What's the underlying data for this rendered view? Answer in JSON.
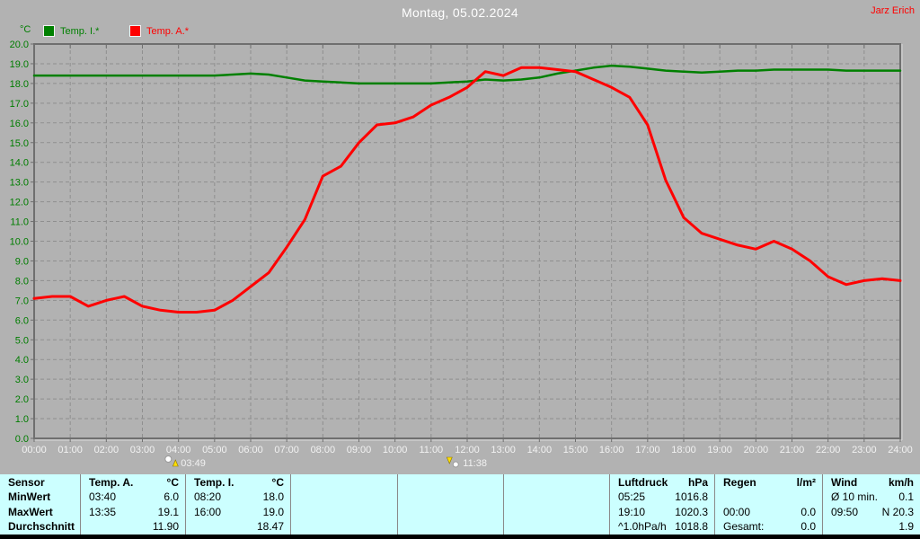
{
  "header": {
    "title": "Montag, 05.02.2024",
    "user": "Jarz Erich"
  },
  "chart_data": {
    "type": "line",
    "title": "Montag, 05.02.2024",
    "ylabel": "°C",
    "ylim": [
      0,
      20
    ],
    "ytick_step": 1,
    "xlim_hours": [
      0,
      24
    ],
    "xtick_labels": [
      "00:00",
      "01:00",
      "02:00",
      "03:00",
      "04:00",
      "05:00",
      "06:00",
      "07:00",
      "08:00",
      "09:00",
      "10:00",
      "11:00",
      "12:00",
      "13:00",
      "14:00",
      "15:00",
      "16:00",
      "17:00",
      "18:00",
      "19:00",
      "20:00",
      "21:00",
      "22:00",
      "23:00",
      "24:00"
    ],
    "grid": true,
    "legend_position": "top-left",
    "series": [
      {
        "name": "Temp. I.*",
        "color": "#008000",
        "x_hours": [
          0,
          0.5,
          1,
          1.5,
          2,
          2.5,
          3,
          3.5,
          4,
          4.5,
          5,
          5.5,
          6,
          6.5,
          7,
          7.5,
          8,
          8.5,
          9,
          9.5,
          10,
          10.5,
          11,
          11.5,
          12,
          12.5,
          13,
          13.5,
          14,
          14.5,
          15,
          15.5,
          16,
          16.5,
          17,
          17.5,
          18,
          18.5,
          19,
          19.5,
          20,
          20.5,
          21,
          21.5,
          22,
          22.5,
          23,
          23.5,
          24
        ],
        "values": [
          18.4,
          18.4,
          18.4,
          18.4,
          18.4,
          18.4,
          18.4,
          18.4,
          18.4,
          18.4,
          18.4,
          18.45,
          18.5,
          18.45,
          18.3,
          18.15,
          18.1,
          18.05,
          18.0,
          18.0,
          18.0,
          18.0,
          18.0,
          18.05,
          18.1,
          18.2,
          18.15,
          18.2,
          18.3,
          18.5,
          18.65,
          18.8,
          18.9,
          18.85,
          18.75,
          18.65,
          18.6,
          18.55,
          18.6,
          18.65,
          18.65,
          18.7,
          18.7,
          18.7,
          18.7,
          18.65,
          18.65,
          18.65,
          18.65
        ]
      },
      {
        "name": "Temp. A.*",
        "color": "#ff0000",
        "x_hours": [
          0,
          0.5,
          1,
          1.5,
          2,
          2.5,
          3,
          3.5,
          4,
          4.5,
          5,
          5.5,
          6,
          6.5,
          7,
          7.5,
          8,
          8.5,
          9,
          9.5,
          10,
          10.5,
          11,
          11.5,
          12,
          12.5,
          13,
          13.5,
          14,
          14.5,
          15,
          15.5,
          16,
          16.5,
          17,
          17.5,
          18,
          18.5,
          19,
          19.5,
          20,
          20.5,
          21,
          21.5,
          22,
          22.5,
          23,
          23.5,
          24
        ],
        "values": [
          7.1,
          7.2,
          7.2,
          6.7,
          7.0,
          7.2,
          6.7,
          6.5,
          6.4,
          6.4,
          6.5,
          7.0,
          7.7,
          8.4,
          9.7,
          11.1,
          13.3,
          13.8,
          15.0,
          15.9,
          16.0,
          16.3,
          16.9,
          17.3,
          17.8,
          18.6,
          18.4,
          18.8,
          18.8,
          18.7,
          18.6,
          18.2,
          17.8,
          17.3,
          15.9,
          13.1,
          11.2,
          10.4,
          10.1,
          9.8,
          9.6,
          10.0,
          9.6,
          9.0,
          8.2,
          7.8,
          8.0,
          8.1,
          8.0
        ]
      }
    ],
    "event_markers": [
      {
        "time": "03:49",
        "icon": "moonrise-icon"
      },
      {
        "time": "11:38",
        "icon": "moonset-icon"
      }
    ],
    "axis_label_colors": {
      "y": "#007d00",
      "x": "#f2f2f2"
    }
  },
  "summary_table": {
    "row_labels": [
      "Sensor",
      "MinWert",
      "MaxWert",
      "Durchschnitt"
    ],
    "groups": [
      {
        "header": "Temp. A.",
        "unit": "°C",
        "rows": [
          [
            "03:40",
            "6.0"
          ],
          [
            "13:35",
            "19.1"
          ],
          [
            "",
            "11.90"
          ]
        ]
      },
      {
        "header": "Temp. I.",
        "unit": "°C",
        "rows": [
          [
            "08:20",
            "18.0"
          ],
          [
            "16:00",
            "19.0"
          ],
          [
            "",
            "18.47"
          ]
        ]
      },
      {
        "header": "",
        "unit": "",
        "rows": [
          [
            "",
            ""
          ],
          [
            "",
            ""
          ],
          [
            "",
            ""
          ]
        ]
      },
      {
        "header": "",
        "unit": "",
        "rows": [
          [
            "",
            ""
          ],
          [
            "",
            ""
          ],
          [
            "",
            ""
          ]
        ]
      },
      {
        "header": "",
        "unit": "",
        "rows": [
          [
            "",
            ""
          ],
          [
            "",
            ""
          ],
          [
            "",
            ""
          ]
        ]
      },
      {
        "header": "Luftdruck",
        "unit": "hPa",
        "rows": [
          [
            "05:25",
            "1016.8"
          ],
          [
            "19:10",
            "1020.3"
          ],
          [
            "^1.0hPa/h",
            "1018.8"
          ]
        ]
      },
      {
        "header": "Regen",
        "unit": "l/m²",
        "rows": [
          [
            "",
            ""
          ],
          [
            "00:00",
            "0.0"
          ],
          [
            "Gesamt:",
            "0.0"
          ]
        ]
      },
      {
        "header": "Wind",
        "unit": "km/h",
        "rows": [
          [
            "Ø 10 min.",
            "0.1"
          ],
          [
            "09:50",
            "N 20.3"
          ],
          [
            "",
            "1.9"
          ]
        ]
      }
    ]
  },
  "colors": {
    "background": "#b2b2b2",
    "plot_grid": "#8f8f8f",
    "plot_frame": "#6f6f6f",
    "frame_highlight": "#d8d8d8",
    "table_background": "#ccffff",
    "table_divider": "#8a8a8a",
    "bottom_bar": "#000000",
    "title_text": "#ffffff",
    "user_text": "#ff0000",
    "marker_text": "#f2f2f2"
  }
}
